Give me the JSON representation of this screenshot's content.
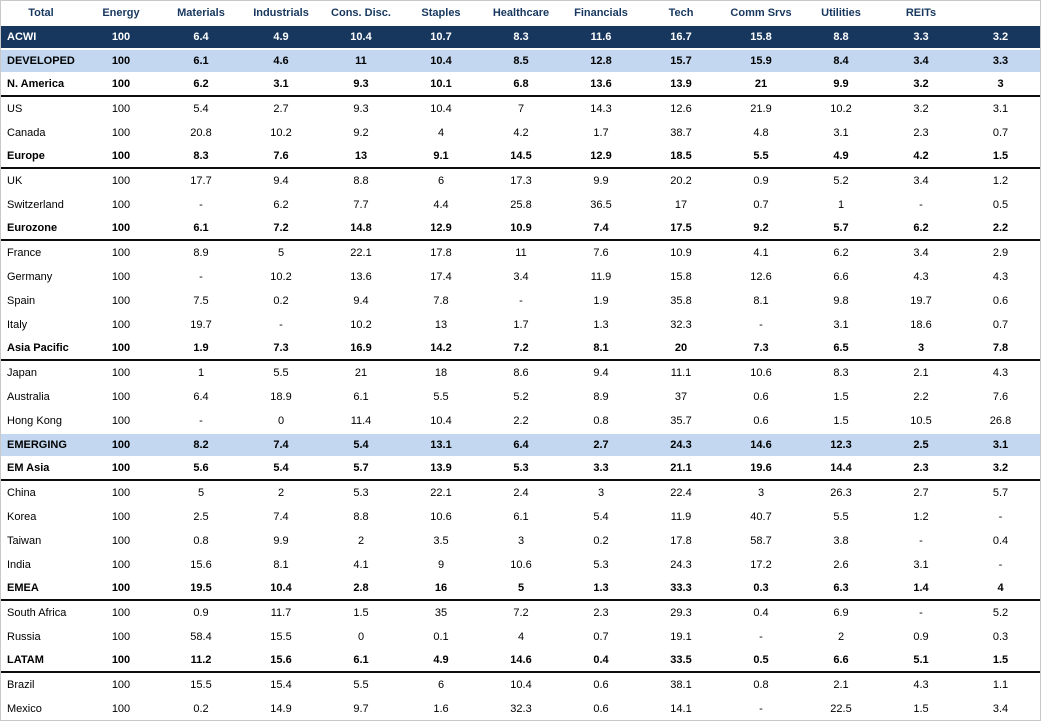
{
  "colors": {
    "dark_row_bg": "#17375E",
    "dark_row_text": "#FFFFFF",
    "light_row_bg": "#C3D8F0",
    "header_text": "#17375E",
    "separator_line": "#0D0D0D",
    "outer_border": "#C9C9C9"
  },
  "chart_data": {
    "type": "table",
    "columns": [
      "Total",
      "Energy",
      "Materials",
      "Industrials",
      "Cons. Disc.",
      "Staples",
      "Healthcare",
      "Financials",
      "Tech",
      "Comm Srvs",
      "Utilities",
      "REITs"
    ],
    "rows": [
      {
        "label": "ACWI",
        "style": "dark",
        "separator": false,
        "values": [
          "100",
          "6.4",
          "4.9",
          "10.4",
          "10.7",
          "8.3",
          "11.6",
          "16.7",
          "15.8",
          "8.8",
          "3.3",
          "3.2"
        ]
      },
      {
        "label": "DEVELOPED",
        "style": "light",
        "separator": false,
        "values": [
          "100",
          "6.1",
          "4.6",
          "11",
          "10.4",
          "8.5",
          "12.8",
          "15.7",
          "15.9",
          "8.4",
          "3.4",
          "3.3"
        ]
      },
      {
        "label": "N. America",
        "style": "bold",
        "separator": true,
        "values": [
          "100",
          "6.2",
          "3.1",
          "9.3",
          "10.1",
          "6.8",
          "13.6",
          "13.9",
          "21",
          "9.9",
          "3.2",
          "3"
        ]
      },
      {
        "label": "US",
        "style": "plain",
        "separator": false,
        "values": [
          "100",
          "5.4",
          "2.7",
          "9.3",
          "10.4",
          "7",
          "14.3",
          "12.6",
          "21.9",
          "10.2",
          "3.2",
          "3.1"
        ]
      },
      {
        "label": "Canada",
        "style": "plain",
        "separator": false,
        "values": [
          "100",
          "20.8",
          "10.2",
          "9.2",
          "4",
          "4.2",
          "1.7",
          "38.7",
          "4.8",
          "3.1",
          "2.3",
          "0.7"
        ]
      },
      {
        "label": "Europe",
        "style": "bold",
        "separator": true,
        "values": [
          "100",
          "8.3",
          "7.6",
          "13",
          "9.1",
          "14.5",
          "12.9",
          "18.5",
          "5.5",
          "4.9",
          "4.2",
          "1.5"
        ]
      },
      {
        "label": "UK",
        "style": "plain",
        "separator": false,
        "values": [
          "100",
          "17.7",
          "9.4",
          "8.8",
          "6",
          "17.3",
          "9.9",
          "20.2",
          "0.9",
          "5.2",
          "3.4",
          "1.2"
        ]
      },
      {
        "label": "Switzerland",
        "style": "plain",
        "separator": false,
        "values": [
          "100",
          "-",
          "6.2",
          "7.7",
          "4.4",
          "25.8",
          "36.5",
          "17",
          "0.7",
          "1",
          "-",
          "0.5"
        ]
      },
      {
        "label": "Eurozone",
        "style": "bold",
        "separator": true,
        "values": [
          "100",
          "6.1",
          "7.2",
          "14.8",
          "12.9",
          "10.9",
          "7.4",
          "17.5",
          "9.2",
          "5.7",
          "6.2",
          "2.2"
        ]
      },
      {
        "label": "France",
        "style": "plain",
        "separator": false,
        "values": [
          "100",
          "8.9",
          "5",
          "22.1",
          "17.8",
          "11",
          "7.6",
          "10.9",
          "4.1",
          "6.2",
          "3.4",
          "2.9"
        ]
      },
      {
        "label": "Germany",
        "style": "plain",
        "separator": false,
        "values": [
          "100",
          "-",
          "10.2",
          "13.6",
          "17.4",
          "3.4",
          "11.9",
          "15.8",
          "12.6",
          "6.6",
          "4.3",
          "4.3"
        ]
      },
      {
        "label": "Spain",
        "style": "plain",
        "separator": false,
        "values": [
          "100",
          "7.5",
          "0.2",
          "9.4",
          "7.8",
          "-",
          "1.9",
          "35.8",
          "8.1",
          "9.8",
          "19.7",
          "0.6"
        ]
      },
      {
        "label": "Italy",
        "style": "plain",
        "separator": false,
        "values": [
          "100",
          "19.7",
          "-",
          "10.2",
          "13",
          "1.7",
          "1.3",
          "32.3",
          "-",
          "3.1",
          "18.6",
          "0.7"
        ]
      },
      {
        "label": "Asia Pacific",
        "style": "bold",
        "separator": true,
        "values": [
          "100",
          "1.9",
          "7.3",
          "16.9",
          "14.2",
          "7.2",
          "8.1",
          "20",
          "7.3",
          "6.5",
          "3",
          "7.8"
        ]
      },
      {
        "label": "Japan",
        "style": "plain",
        "separator": false,
        "values": [
          "100",
          "1",
          "5.5",
          "21",
          "18",
          "8.6",
          "9.4",
          "11.1",
          "10.6",
          "8.3",
          "2.1",
          "4.3"
        ]
      },
      {
        "label": "Australia",
        "style": "plain",
        "separator": false,
        "values": [
          "100",
          "6.4",
          "18.9",
          "6.1",
          "5.5",
          "5.2",
          "8.9",
          "37",
          "0.6",
          "1.5",
          "2.2",
          "7.6"
        ]
      },
      {
        "label": "Hong Kong",
        "style": "plain",
        "separator": false,
        "values": [
          "100",
          "-",
          "0",
          "11.4",
          "10.4",
          "2.2",
          "0.8",
          "35.7",
          "0.6",
          "1.5",
          "10.5",
          "26.8"
        ]
      },
      {
        "label": "EMERGING",
        "style": "light",
        "separator": false,
        "values": [
          "100",
          "8.2",
          "7.4",
          "5.4",
          "13.1",
          "6.4",
          "2.7",
          "24.3",
          "14.6",
          "12.3",
          "2.5",
          "3.1"
        ]
      },
      {
        "label": "EM Asia",
        "style": "bold",
        "separator": true,
        "values": [
          "100",
          "5.6",
          "5.4",
          "5.7",
          "13.9",
          "5.3",
          "3.3",
          "21.1",
          "19.6",
          "14.4",
          "2.3",
          "3.2"
        ]
      },
      {
        "label": "China",
        "style": "plain",
        "separator": false,
        "values": [
          "100",
          "5",
          "2",
          "5.3",
          "22.1",
          "2.4",
          "3",
          "22.4",
          "3",
          "26.3",
          "2.7",
          "5.7"
        ]
      },
      {
        "label": "Korea",
        "style": "plain",
        "separator": false,
        "values": [
          "100",
          "2.5",
          "7.4",
          "8.8",
          "10.6",
          "6.1",
          "5.4",
          "11.9",
          "40.7",
          "5.5",
          "1.2",
          "-"
        ]
      },
      {
        "label": "Taiwan",
        "style": "plain",
        "separator": false,
        "values": [
          "100",
          "0.8",
          "9.9",
          "2",
          "3.5",
          "3",
          "0.2",
          "17.8",
          "58.7",
          "3.8",
          "-",
          "0.4"
        ]
      },
      {
        "label": "India",
        "style": "plain",
        "separator": false,
        "values": [
          "100",
          "15.6",
          "8.1",
          "4.1",
          "9",
          "10.6",
          "5.3",
          "24.3",
          "17.2",
          "2.6",
          "3.1",
          "-"
        ]
      },
      {
        "label": "EMEA",
        "style": "bold",
        "separator": true,
        "values": [
          "100",
          "19.5",
          "10.4",
          "2.8",
          "16",
          "5",
          "1.3",
          "33.3",
          "0.3",
          "6.3",
          "1.4",
          "4"
        ]
      },
      {
        "label": "South Africa",
        "style": "plain",
        "separator": false,
        "values": [
          "100",
          "0.9",
          "11.7",
          "1.5",
          "35",
          "7.2",
          "2.3",
          "29.3",
          "0.4",
          "6.9",
          "-",
          "5.2"
        ]
      },
      {
        "label": "Russia",
        "style": "plain",
        "separator": false,
        "values": [
          "100",
          "58.4",
          "15.5",
          "0",
          "0.1",
          "4",
          "0.7",
          "19.1",
          "-",
          "2",
          "0.9",
          "0.3"
        ]
      },
      {
        "label": "LATAM",
        "style": "bold",
        "separator": true,
        "values": [
          "100",
          "11.2",
          "15.6",
          "6.1",
          "4.9",
          "14.6",
          "0.4",
          "33.5",
          "0.5",
          "6.6",
          "5.1",
          "1.5"
        ]
      },
      {
        "label": "Brazil",
        "style": "plain",
        "separator": false,
        "values": [
          "100",
          "15.5",
          "15.4",
          "5.5",
          "6",
          "10.4",
          "0.6",
          "38.1",
          "0.8",
          "2.1",
          "4.3",
          "1.1"
        ]
      },
      {
        "label": "Mexico",
        "style": "plain",
        "separator": false,
        "values": [
          "100",
          "0.2",
          "14.9",
          "9.7",
          "1.6",
          "32.3",
          "0.6",
          "14.1",
          "-",
          "22.5",
          "1.5",
          "3.4"
        ]
      }
    ]
  }
}
